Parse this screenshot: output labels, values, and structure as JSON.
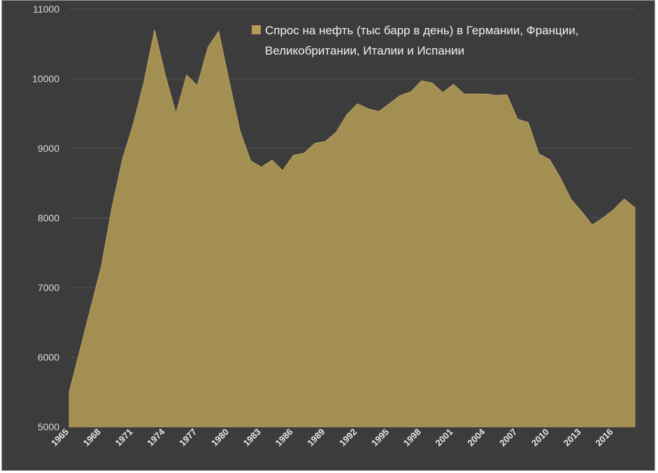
{
  "chart_data": {
    "type": "area",
    "legend": "Спрос на нефть (тыс барр в день) в Германии, Франции, Великобритании, Италии и Испании",
    "legend_lines": [
      "Спрос на нефть (тыс барр в день) в Германии, Франции,",
      "Великобритании, Италии и Испании"
    ],
    "legend_position": "top-right",
    "ylim": [
      5000,
      11000
    ],
    "yticks": [
      5000,
      6000,
      7000,
      8000,
      9000,
      10000,
      11000
    ],
    "xlim": [
      1965,
      2018
    ],
    "xticks": [
      "1965",
      "1968",
      "1971",
      "1974",
      "1977",
      "1980",
      "1983",
      "1986",
      "1989",
      "1992",
      "1995",
      "1998",
      "2001",
      "2004",
      "2007",
      "2010",
      "2013",
      "2016"
    ],
    "grid": true,
    "series": [
      {
        "name": "Спрос на нефть (тыс барр в день) в Германии, Франции, Великобритании, Италии и Испании",
        "x": [
          1965,
          1966,
          1967,
          1968,
          1969,
          1970,
          1971,
          1972,
          1973,
          1974,
          1975,
          1976,
          1977,
          1978,
          1979,
          1980,
          1981,
          1982,
          1983,
          1984,
          1985,
          1986,
          1987,
          1988,
          1989,
          1990,
          1991,
          1992,
          1993,
          1994,
          1995,
          1996,
          1997,
          1998,
          1999,
          2000,
          2001,
          2002,
          2003,
          2004,
          2005,
          2006,
          2007,
          2008,
          2009,
          2010,
          2011,
          2012,
          2013,
          2014,
          2015,
          2016,
          2017,
          2018
        ],
        "values": [
          5500,
          6100,
          6700,
          7300,
          8150,
          8850,
          9350,
          9950,
          10700,
          10050,
          9500,
          10050,
          9900,
          10450,
          10680,
          9950,
          9250,
          8820,
          8730,
          8830,
          8680,
          8900,
          8930,
          9070,
          9100,
          9230,
          9480,
          9640,
          9570,
          9530,
          9640,
          9760,
          9810,
          9970,
          9940,
          9800,
          9920,
          9780,
          9780,
          9780,
          9760,
          9770,
          9420,
          9370,
          8920,
          8840,
          8580,
          8270,
          8090,
          7900,
          8000,
          8120,
          8270,
          8150
        ]
      }
    ],
    "colors": {
      "background": "#3c3c3c",
      "area_fill": "#a48f52",
      "area_stroke": "#b8a268",
      "grid": "#525252",
      "legend_swatch": "#b49b58"
    }
  }
}
